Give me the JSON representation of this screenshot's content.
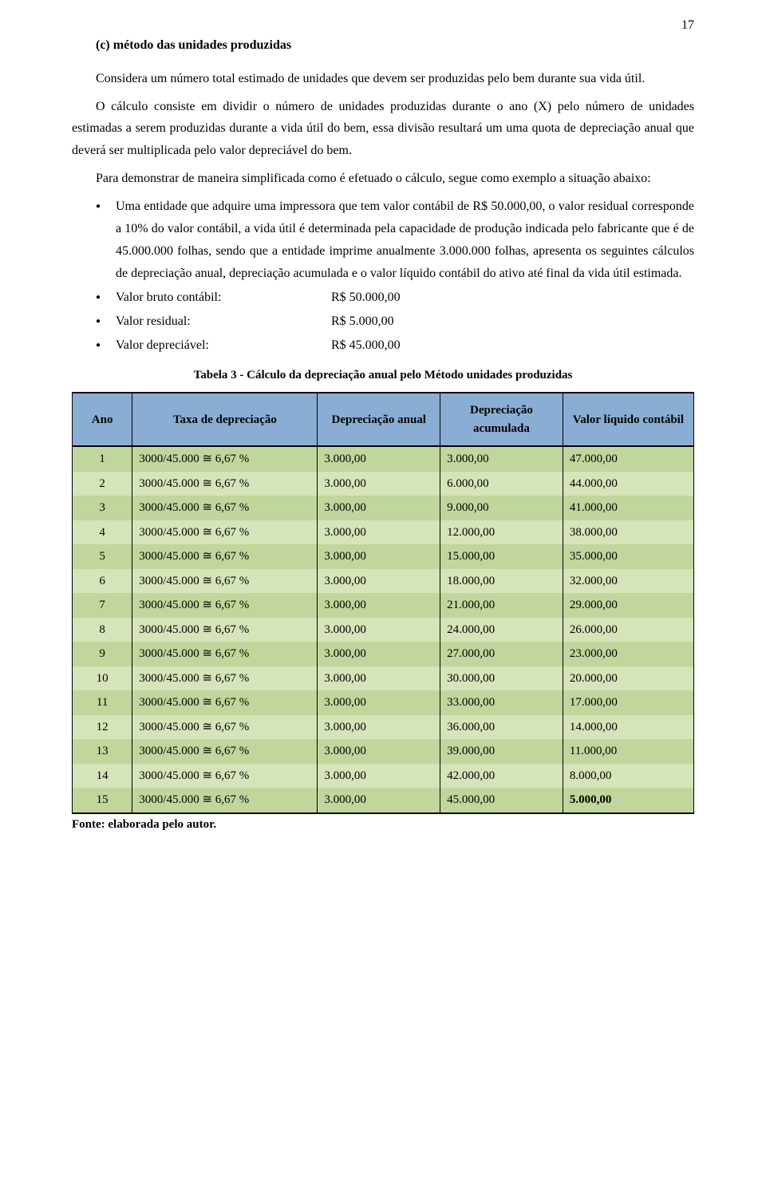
{
  "page_number": "17",
  "section_title": "(c)  método das unidades produzidas",
  "p1": "Considera um número total estimado de unidades que devem ser produzidas pelo bem durante sua vida útil.",
  "p2": "O cálculo consiste em dividir o número de unidades produzidas durante o ano (X) pelo número de unidades estimadas a serem produzidas durante a vida útil do bem, essa divisão resultará um uma quota de depreciação anual que deverá ser multiplicada pelo valor depreciável do bem.",
  "p3": "Para demonstrar de maneira simplificada como é efetuado o cálculo, segue como exemplo a situação abaixo:",
  "bullet1": "Uma entidade que adquire uma impressora que tem valor contábil de R$ 50.000,00, o valor residual corresponde a 10% do valor contábil, a vida útil é determinada pela capacidade de produção indicada pelo fabricante que  é de 45.000.000 folhas, sendo que a entidade imprime anualmente 3.000.000 folhas, apresenta os seguintes cálculos de depreciação anual, depreciação acumulada e o valor líquido contábil do ativo até final da vida útil estimada.",
  "bullet2_label": "Valor bruto contábil:",
  "bullet2_value": "R$ 50.000,00",
  "bullet3_label": "Valor residual:",
  "bullet3_value": "R$  5.000,00",
  "bullet4_label": "Valor depreciável:",
  "bullet4_value": "R$ 45.000,00",
  "table_caption": "Tabela 3 - Cálculo da depreciação anual pelo Método unidades produzidas",
  "table": {
    "header_bg": "#8aadd4",
    "row_bg": "#c0d69c",
    "row_bg_alt": "#d6e4ba",
    "columns": [
      "Ano",
      "Taxa de depreciação",
      "Depreciação anual",
      "Depreciação acumulada",
      "Valor líquido contábil"
    ],
    "taxa_text": "3000/45.000 ≅ 6,67 %",
    "rows": [
      {
        "ano": "1",
        "anual": "3.000,00",
        "acum": "3.000,00",
        "liq": "47.000,00"
      },
      {
        "ano": "2",
        "anual": "3.000,00",
        "acum": "6.000,00",
        "liq": "44.000,00"
      },
      {
        "ano": "3",
        "anual": "3.000,00",
        "acum": "9.000,00",
        "liq": "41.000,00"
      },
      {
        "ano": "4",
        "anual": "3.000,00",
        "acum": "12.000,00",
        "liq": "38.000,00"
      },
      {
        "ano": "5",
        "anual": "3.000,00",
        "acum": "15.000,00",
        "liq": "35.000,00"
      },
      {
        "ano": "6",
        "anual": "3.000,00",
        "acum": "18.000,00",
        "liq": "32.000,00"
      },
      {
        "ano": "7",
        "anual": "3.000,00",
        "acum": "21.000,00",
        "liq": "29.000,00"
      },
      {
        "ano": "8",
        "anual": "3.000,00",
        "acum": "24.000,00",
        "liq": "26.000,00"
      },
      {
        "ano": "9",
        "anual": "3.000,00",
        "acum": "27.000,00",
        "liq": "23.000,00"
      },
      {
        "ano": "10",
        "anual": "3.000,00",
        "acum": "30.000,00",
        "liq": "20.000,00"
      },
      {
        "ano": "11",
        "anual": "3.000,00",
        "acum": "33.000,00",
        "liq": "17.000,00"
      },
      {
        "ano": "12",
        "anual": "3.000,00",
        "acum": "36.000,00",
        "liq": "14.000,00"
      },
      {
        "ano": "13",
        "anual": "3.000,00",
        "acum": "39.000,00",
        "liq": "11.000,00"
      },
      {
        "ano": "14",
        "anual": "3.000,00",
        "acum": "42.000,00",
        "liq": "8.000,00"
      },
      {
        "ano": "15",
        "anual": "3.000,00",
        "acum": "45.000,00",
        "liq": "5.000,00"
      }
    ]
  },
  "source": "Fonte: elaborada pelo autor."
}
